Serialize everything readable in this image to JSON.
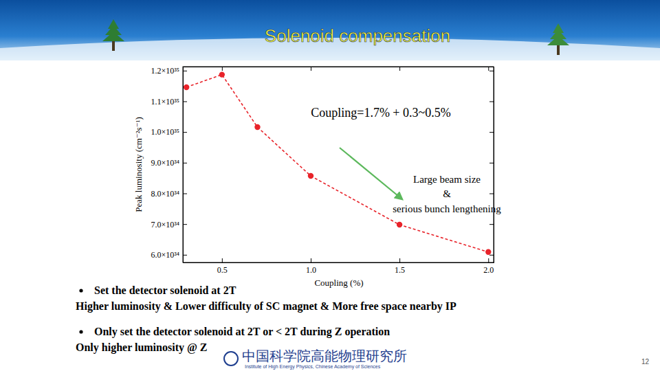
{
  "chart_data": {
    "type": "line",
    "x_label": "Coupling (%)",
    "y_label": "Peak luminosity (cm⁻²s⁻¹)",
    "x": [
      0.3,
      0.5,
      0.7,
      1.0,
      1.5,
      2.0
    ],
    "values": [
      1.146e+35,
      1.187e+35,
      1.016e+35,
      8.57e+34,
      6.98e+34,
      6.09e+34
    ],
    "color": "#e8232a",
    "marker": "circle",
    "line_style": "dashed",
    "xlim": [
      0.28,
      2.03
    ],
    "xticks": [
      0.5,
      {
        "value": 1,
        "label": "1.0"
      },
      1.5,
      {
        "value": 2,
        "label": "2.0"
      }
    ],
    "ylim": [
      5.75e+34,
      1.213e+35
    ],
    "yticks": [
      {
        "value": 6e+34,
        "label": "6.0×10³⁴"
      },
      {
        "value": 7e+34,
        "label": "7.0×10³⁴"
      },
      {
        "value": 8e+34,
        "label": "8.0×10³⁴"
      },
      {
        "value": 9e+34,
        "label": "9.0×10³⁴"
      },
      {
        "value": 1e+35,
        "label": "1.0×10³⁵"
      },
      {
        "value": 1.1e+35,
        "label": "1.1×10³⁵"
      },
      {
        "value": 1.2e+35,
        "label": "1.2×10³⁵"
      }
    ],
    "grid": false,
    "annotations": [
      "Coupling=1.7% + 0.3~0.5%",
      "Large beam size",
      "&",
      "serious bunch lengthening"
    ]
  },
  "slide": {
    "title": "Solenoid compensation",
    "bullets": [
      {
        "head": "Set the detector solenoid at 2T",
        "detail": "Higher luminosity & Lower difficulty of SC magnet & More free space nearby IP"
      },
      {
        "head": "Only set the detector solenoid at 2T or < 2T during Z operation",
        "detail": "Only higher luminosity @ Z"
      }
    ],
    "footer": {
      "name_zh": "中国科学院高能物理研究所",
      "name_en": "Institute of High Energy Physics, Chinese Academy of Sciences"
    },
    "page": "12"
  }
}
